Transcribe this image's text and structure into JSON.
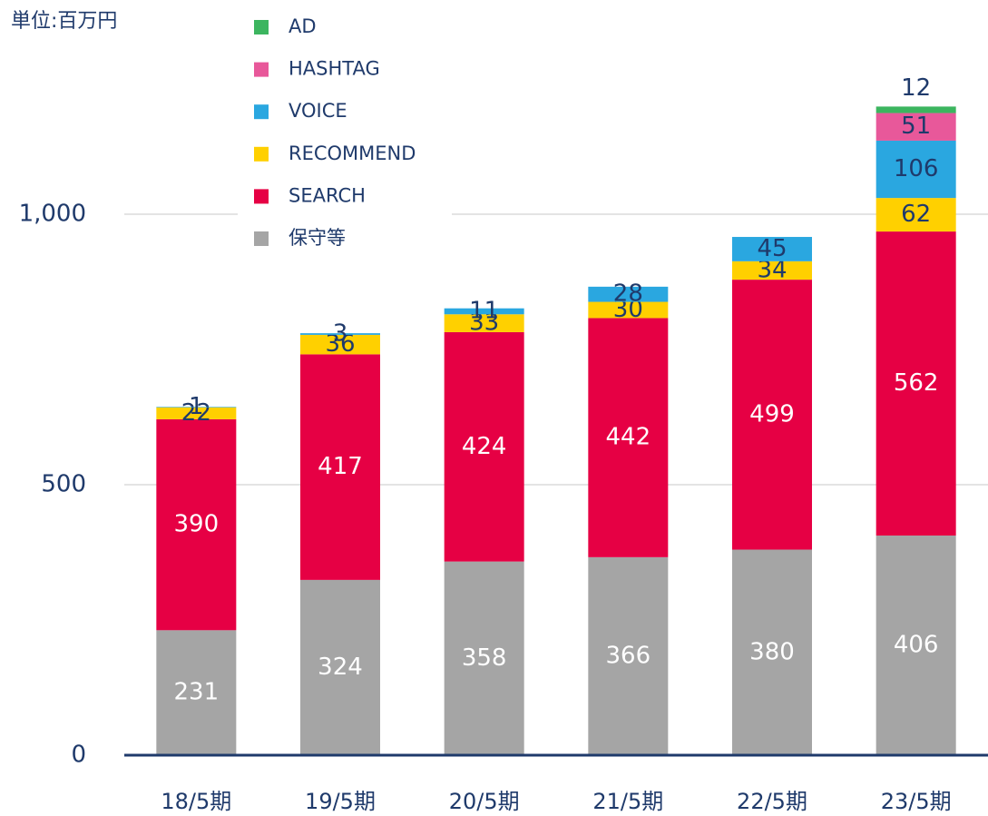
{
  "chart_data": {
    "type": "stacked_bar",
    "unit_label": "単位:百万円",
    "categories": [
      "18/5期",
      "19/5期",
      "20/5期",
      "21/5期",
      "22/5期",
      "23/5期"
    ],
    "series": [
      {
        "name": "保守等",
        "color": "#a5a5a5",
        "values": [
          231,
          324,
          358,
          366,
          380,
          406
        ]
      },
      {
        "name": "SEARCH",
        "color": "#e60044",
        "values": [
          390,
          417,
          424,
          442,
          499,
          562
        ]
      },
      {
        "name": "RECOMMEND",
        "color": "#ffd000",
        "values": [
          22,
          36,
          33,
          30,
          34,
          62
        ]
      },
      {
        "name": "VOICE",
        "color": "#2aa7e0",
        "values": [
          1,
          3,
          11,
          28,
          45,
          106
        ]
      },
      {
        "name": "HASHTAG",
        "color": "#e8589a",
        "values": [
          null,
          null,
          null,
          null,
          null,
          51
        ]
      },
      {
        "name": "AD",
        "color": "#3cb55f",
        "values": [
          null,
          null,
          null,
          null,
          null,
          12
        ]
      }
    ],
    "ylim": [
      0,
      1300
    ],
    "yticks": [
      0,
      500,
      {
        "value": 1000,
        "label": "1,000"
      }
    ],
    "grid": true,
    "legend": "upper-left"
  }
}
